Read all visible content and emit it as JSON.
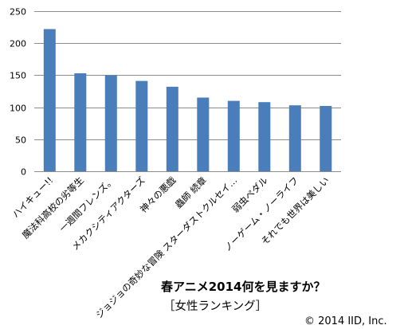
{
  "chart_data": {
    "type": "bar",
    "title": "春アニメ2014何を見ますか？",
    "subtitle": "［女性ランキング］",
    "copyright": "© 2014 IID, Inc.",
    "categories": [
      "ハイキュー!!",
      "魔法科高校の劣等生",
      "一週間フレンズ。",
      "メカクシティアクターズ",
      "神々の悪戯",
      "蟲師 続章",
      "ジョジョの奇妙な冒険 スターダストクルセイ…",
      "弱虫ペダル",
      "ノーゲーム・ノーライフ",
      "それでも世界は美しい"
    ],
    "values": [
      222,
      153,
      150,
      141,
      132,
      115,
      110,
      108,
      103,
      102
    ],
    "ylim": [
      0,
      250
    ],
    "yticks": [
      0,
      50,
      100,
      150,
      200,
      250
    ],
    "grid": true,
    "colors": {
      "bar": "#4a7ebb"
    }
  }
}
